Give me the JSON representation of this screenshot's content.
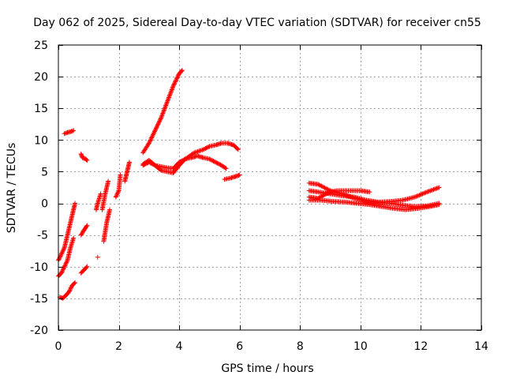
{
  "chart_data": {
    "type": "scatter",
    "title": "Day 062 of 2025, Sidereal Day-to-day VTEC variation (SDTVAR) for receiver cn55",
    "xlabel": "GPS time / hours",
    "ylabel": "SDTVAR / TECUs",
    "xlim": [
      0,
      14
    ],
    "ylim": [
      -20,
      25
    ],
    "xticks": [
      0,
      2,
      4,
      6,
      8,
      10,
      12,
      14
    ],
    "yticks": [
      -20,
      -15,
      -10,
      -5,
      0,
      5,
      10,
      15,
      20,
      25
    ],
    "xtick_labels": [
      "0",
      "2",
      "4",
      "6",
      "8",
      "10",
      "12",
      "14"
    ],
    "ytick_labels": [
      "-20",
      "-15",
      "-10",
      "-5",
      "0",
      "5",
      "10",
      "15",
      "20",
      "25"
    ],
    "grid": true,
    "marker": "+",
    "color": "#ff0000",
    "tracks": [
      {
        "x": [
          0.0,
          0.1,
          0.2,
          0.3,
          0.4,
          0.5,
          0.55
        ],
        "y": [
          -9,
          -8,
          -7,
          -5,
          -3,
          -1,
          0
        ]
      },
      {
        "x": [
          0.0,
          0.1,
          0.2,
          0.3,
          0.4,
          0.5
        ],
        "y": [
          -11.5,
          -11,
          -10,
          -9,
          -7,
          -5.5
        ]
      },
      {
        "x": [
          0.05,
          0.15,
          0.25,
          0.35,
          0.45,
          0.55
        ],
        "y": [
          -14.8,
          -15,
          -14.5,
          -14,
          -13,
          -12.5
        ]
      },
      {
        "x": [
          0.2,
          0.3,
          0.4,
          0.5
        ],
        "y": [
          11,
          11.2,
          11.3,
          11.5
        ]
      },
      {
        "x": [
          0.75,
          0.8,
          0.9,
          0.95
        ],
        "y": [
          7.8,
          7.2,
          7.0,
          6.8
        ]
      },
      {
        "x": [
          0.75,
          0.85,
          0.95
        ],
        "y": [
          -5,
          -4.2,
          -3.5
        ]
      },
      {
        "x": [
          0.75,
          0.85,
          0.95
        ],
        "y": [
          -11,
          -10.5,
          -10
        ]
      },
      {
        "x": [
          1.25,
          1.3,
          1.4
        ],
        "y": [
          -1,
          0,
          1.5
        ]
      },
      {
        "x": [
          1.3
        ],
        "y": [
          -8.5
        ]
      },
      {
        "x": [
          1.45,
          1.55,
          1.65
        ],
        "y": [
          -1,
          1.5,
          3.5
        ]
      },
      {
        "x": [
          1.5,
          1.55,
          1.6,
          1.7
        ],
        "y": [
          -6,
          -4.5,
          -3,
          -1
        ]
      },
      {
        "x": [
          1.9,
          2.0,
          2.05
        ],
        "y": [
          1,
          2,
          4.5
        ]
      },
      {
        "x": [
          2.2,
          2.25,
          2.3,
          2.35
        ],
        "y": [
          3.5,
          4.5,
          5.5,
          6.5
        ]
      },
      {
        "x": [
          2.8,
          3.0,
          3.2,
          3.4,
          3.6,
          3.8,
          4.0,
          4.1
        ],
        "y": [
          8,
          9.5,
          11.5,
          13.5,
          16,
          18.5,
          20.5,
          21
        ]
      },
      {
        "x": [
          2.8,
          3.0,
          3.2,
          3.4,
          3.6,
          3.8,
          4.0,
          4.2,
          4.5,
          4.8,
          5.0,
          5.2,
          5.4,
          5.6,
          5.8,
          5.95
        ],
        "y": [
          6,
          6.5,
          6.0,
          5.8,
          5.6,
          5.5,
          6.5,
          7,
          8,
          8.5,
          9,
          9.2,
          9.5,
          9.5,
          9.2,
          8.5
        ]
      },
      {
        "x": [
          2.8,
          3.0,
          3.2,
          3.4,
          3.6,
          3.8,
          4.0,
          4.2,
          4.4,
          4.6,
          4.8,
          5.0,
          5.2,
          5.4,
          5.55
        ],
        "y": [
          6.2,
          6.8,
          6.0,
          5.2,
          5.0,
          4.8,
          6,
          7,
          7.2,
          7.5,
          7.2,
          7,
          6.5,
          6.0,
          5.5
        ]
      },
      {
        "x": [
          5.5,
          5.7,
          5.9,
          6.0
        ],
        "y": [
          3.8,
          4.0,
          4.3,
          4.5
        ]
      },
      {
        "x": [
          8.3,
          8.6,
          9.0,
          9.4,
          9.8,
          10.2,
          10.6,
          11.0,
          11.4,
          11.8,
          12.2,
          12.6
        ],
        "y": [
          3.2,
          3.0,
          2.0,
          1.5,
          0.8,
          0.3,
          0.1,
          0.0,
          -0.3,
          -0.5,
          -0.4,
          0.0
        ]
      },
      {
        "x": [
          8.3,
          8.6,
          9.0,
          9.4,
          9.8,
          10.2,
          10.6,
          11.0,
          11.4,
          11.8,
          12.2,
          12.6
        ],
        "y": [
          2.0,
          1.8,
          1.5,
          1.2,
          1.0,
          0.5,
          0.2,
          0.3,
          0.5,
          1.0,
          1.8,
          2.5
        ]
      },
      {
        "x": [
          8.3,
          8.6,
          8.9,
          9.2,
          9.6,
          10.0,
          10.3
        ],
        "y": [
          1.0,
          0.8,
          1.6,
          2.0,
          2.0,
          2.0,
          1.8
        ]
      },
      {
        "x": [
          8.3,
          8.7,
          9.1,
          9.5,
          9.9,
          10.3,
          10.7,
          11.1,
          11.5,
          11.9,
          12.3,
          12.6
        ],
        "y": [
          0.5,
          0.5,
          0.3,
          0.2,
          0.0,
          -0.2,
          -0.5,
          -0.8,
          -1.0,
          -0.8,
          -0.5,
          -0.2
        ]
      }
    ]
  }
}
